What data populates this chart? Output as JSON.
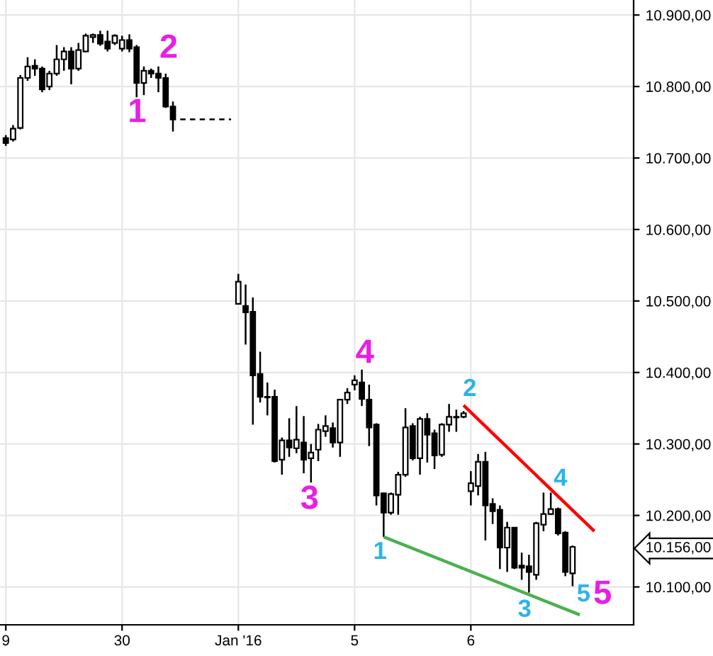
{
  "chart_data": {
    "type": "candlestick",
    "categories": [
      "9",
      null,
      null,
      null,
      null,
      null,
      null,
      null,
      null,
      null,
      null,
      null,
      null,
      null,
      null,
      null,
      "30",
      null,
      null,
      null,
      null,
      null,
      null,
      null,
      null,
      null,
      null,
      null,
      null,
      null,
      null,
      null,
      "Jan '16",
      null,
      null,
      null,
      null,
      null,
      null,
      null,
      null,
      null,
      null,
      null,
      null,
      null,
      null,
      null,
      "5",
      null,
      null,
      null,
      null,
      null,
      null,
      null,
      null,
      null,
      null,
      null,
      null,
      null,
      null,
      null,
      "6",
      null,
      null,
      null,
      null,
      null,
      null,
      null,
      null,
      null,
      null,
      null,
      null,
      null,
      null,
      null,
      null,
      null,
      null,
      null,
      null,
      null,
      null
    ],
    "ohlc": [
      [
        10728,
        10732,
        10717,
        10721
      ],
      [
        10726,
        10746,
        10723,
        10741
      ],
      [
        10742,
        10816,
        10740,
        10812
      ],
      [
        10812,
        10841,
        10808,
        10828
      ],
      [
        10829,
        10838,
        10815,
        10825
      ],
      [
        10825,
        10828,
        10792,
        10796
      ],
      [
        10800,
        10822,
        10795,
        10818
      ],
      [
        10818,
        10858,
        10815,
        10838
      ],
      [
        10838,
        10855,
        10822,
        10849
      ],
      [
        10849,
        10855,
        10803,
        10825
      ],
      [
        10825,
        10861,
        10822,
        10851
      ],
      [
        10849,
        10874,
        10848,
        10871
      ],
      [
        10869,
        10874,
        10861,
        10872
      ],
      [
        10872,
        10878,
        10857,
        10860
      ],
      [
        10863,
        10878,
        10849,
        10853
      ],
      [
        10861,
        10873,
        10858,
        10871
      ],
      [
        10853,
        10871,
        10849,
        10865
      ],
      [
        10865,
        10873,
        10848,
        10853
      ],
      [
        10855,
        10858,
        10785,
        10805
      ],
      [
        10805,
        10828,
        10788,
        10822
      ],
      [
        10822,
        10825,
        10812,
        10818
      ],
      [
        10818,
        10828,
        10792,
        10812
      ],
      [
        10812,
        10818,
        10770,
        10772
      ],
      [
        10772,
        10779,
        10737,
        10754
      ],
      null,
      null,
      null,
      null,
      null,
      null,
      null,
      null,
      [
        10496,
        10538,
        10495,
        10527
      ],
      [
        10493,
        10523,
        10439,
        10484
      ],
      [
        10485,
        10505,
        10327,
        10396
      ],
      [
        10398,
        10429,
        10358,
        10366
      ],
      [
        10366,
        10386,
        10340,
        10365
      ],
      [
        10366,
        10376,
        10274,
        10276
      ],
      [
        10278,
        10309,
        10257,
        10305
      ],
      [
        10305,
        10336,
        10282,
        10295
      ],
      [
        10294,
        10353,
        10287,
        10306
      ],
      [
        10302,
        10339,
        10259,
        10278
      ],
      [
        10280,
        10300,
        10246,
        10288
      ],
      [
        10292,
        10328,
        10276,
        10320
      ],
      [
        10318,
        10340,
        10310,
        10325
      ],
      [
        10322,
        10330,
        10295,
        10302
      ],
      [
        10302,
        10363,
        10282,
        10362
      ],
      [
        10362,
        10378,
        10356,
        10372
      ],
      [
        10383,
        10396,
        10375,
        10389
      ],
      [
        10386,
        10404,
        10353,
        10363
      ],
      [
        10362,
        10383,
        10297,
        10323
      ],
      [
        10327,
        10329,
        10214,
        10228
      ],
      [
        10231,
        10232,
        10170,
        10204
      ],
      [
        10204,
        10232,
        10201,
        10230
      ],
      [
        10229,
        10261,
        10201,
        10257
      ],
      [
        10257,
        10350,
        10254,
        10323
      ],
      [
        10325,
        10329,
        10277,
        10280
      ],
      [
        10280,
        10338,
        10257,
        10335
      ],
      [
        10335,
        10343,
        10274,
        10313
      ],
      [
        10315,
        10320,
        10265,
        10284
      ],
      [
        10285,
        10329,
        10282,
        10327
      ],
      [
        10327,
        10356,
        10317,
        10338
      ],
      [
        10337,
        10348,
        10317,
        10338
      ],
      [
        10338,
        10346,
        10336,
        10343
      ],
      [
        10234,
        10262,
        10214,
        10245
      ],
      [
        10241,
        10286,
        10228,
        10275
      ],
      [
        10275,
        10289,
        10165,
        10214
      ],
      [
        10216,
        10224,
        10188,
        10206
      ],
      [
        10208,
        10214,
        10125,
        10155
      ],
      [
        10155,
        10191,
        10121,
        10183
      ],
      [
        10183,
        10183,
        10125,
        10127
      ],
      [
        10130,
        10148,
        10110,
        10127
      ],
      [
        10129,
        10145,
        10092,
        10121
      ],
      [
        10117,
        10191,
        10110,
        10189
      ],
      [
        10187,
        10232,
        10178,
        10202
      ],
      [
        10202,
        10232,
        10201,
        10209
      ],
      [
        10209,
        10211,
        10172,
        10175
      ],
      [
        10176,
        10178,
        10115,
        10121
      ],
      [
        10119,
        10158,
        10101,
        10156
      ],
      null,
      null,
      null,
      null,
      null,
      null,
      null,
      null
    ],
    "color": "#000000",
    "series": [
      {
        "type": "line",
        "color": "#000000",
        "line_style": "dashed",
        "values": [
          null,
          null,
          null,
          null,
          null,
          null,
          null,
          null,
          null,
          null,
          null,
          null,
          null,
          null,
          null,
          null,
          null,
          null,
          null,
          null,
          null,
          null,
          null,
          null,
          10754,
          10754,
          10754,
          10754,
          10754,
          10754,
          10754,
          10754,
          null,
          null,
          null,
          null,
          null,
          null,
          null,
          null,
          null,
          null,
          null,
          null,
          null,
          null,
          null,
          null,
          null,
          null,
          null,
          null,
          null,
          null,
          null,
          null,
          null,
          null,
          null,
          null,
          null,
          null,
          null,
          null,
          null,
          null,
          null,
          null,
          null,
          null,
          null,
          null,
          null,
          null,
          null,
          null,
          null,
          null,
          null,
          null,
          null,
          null,
          null,
          null,
          null,
          null,
          null
        ]
      },
      {
        "type": "line",
        "color": "#ff0000",
        "line_style": "solid",
        "values": [
          null,
          null,
          null,
          null,
          null,
          null,
          null,
          null,
          null,
          null,
          null,
          null,
          null,
          null,
          null,
          null,
          null,
          null,
          null,
          null,
          null,
          null,
          null,
          null,
          null,
          null,
          null,
          null,
          null,
          null,
          null,
          null,
          null,
          null,
          null,
          null,
          null,
          null,
          null,
          null,
          null,
          null,
          null,
          null,
          null,
          null,
          null,
          null,
          null,
          null,
          null,
          null,
          null,
          null,
          null,
          null,
          null,
          null,
          null,
          null,
          null,
          null,
          null,
          10354,
          null,
          null,
          null,
          null,
          null,
          null,
          null,
          null,
          null,
          null,
          null,
          null,
          null,
          null,
          null,
          null,
          null,
          10178,
          null,
          null,
          null,
          null,
          null
        ]
      },
      {
        "type": "line",
        "color": "#4cb050",
        "line_style": "solid",
        "values": [
          null,
          null,
          null,
          null,
          null,
          null,
          null,
          null,
          null,
          null,
          null,
          null,
          null,
          null,
          null,
          null,
          null,
          null,
          null,
          null,
          null,
          null,
          null,
          null,
          null,
          null,
          null,
          null,
          null,
          null,
          null,
          null,
          null,
          null,
          null,
          null,
          null,
          null,
          null,
          null,
          null,
          null,
          null,
          null,
          null,
          null,
          null,
          null,
          null,
          null,
          null,
          null,
          10170,
          null,
          null,
          null,
          null,
          null,
          null,
          null,
          null,
          null,
          null,
          null,
          null,
          null,
          null,
          null,
          null,
          null,
          null,
          null,
          null,
          null,
          null,
          null,
          null,
          null,
          null,
          10061,
          null,
          null,
          null,
          null,
          null,
          null,
          null
        ]
      }
    ],
    "ylim": [
      10047,
      10921
    ],
    "yticks": [
      {
        "value": 10100,
        "label": "10.100,00"
      },
      {
        "value": 10156,
        "label": "10.156,00"
      },
      {
        "value": 10200,
        "label": "10.200,00"
      },
      {
        "value": 10300,
        "label": "10.300,00"
      },
      {
        "value": 10400,
        "label": "10.400,00"
      },
      {
        "value": 10500,
        "label": "10.500,00"
      },
      {
        "value": 10600,
        "label": "10.600,00"
      },
      {
        "value": 10700,
        "label": "10.700,00"
      },
      {
        "value": 10800,
        "label": "10.800,00"
      },
      {
        "value": 10900,
        "label": "10.900,00"
      }
    ],
    "grid": true,
    "annotations": [
      "1",
      "2",
      "3",
      "4",
      "5",
      "1",
      "2",
      "3",
      "4",
      "5"
    ]
  }
}
